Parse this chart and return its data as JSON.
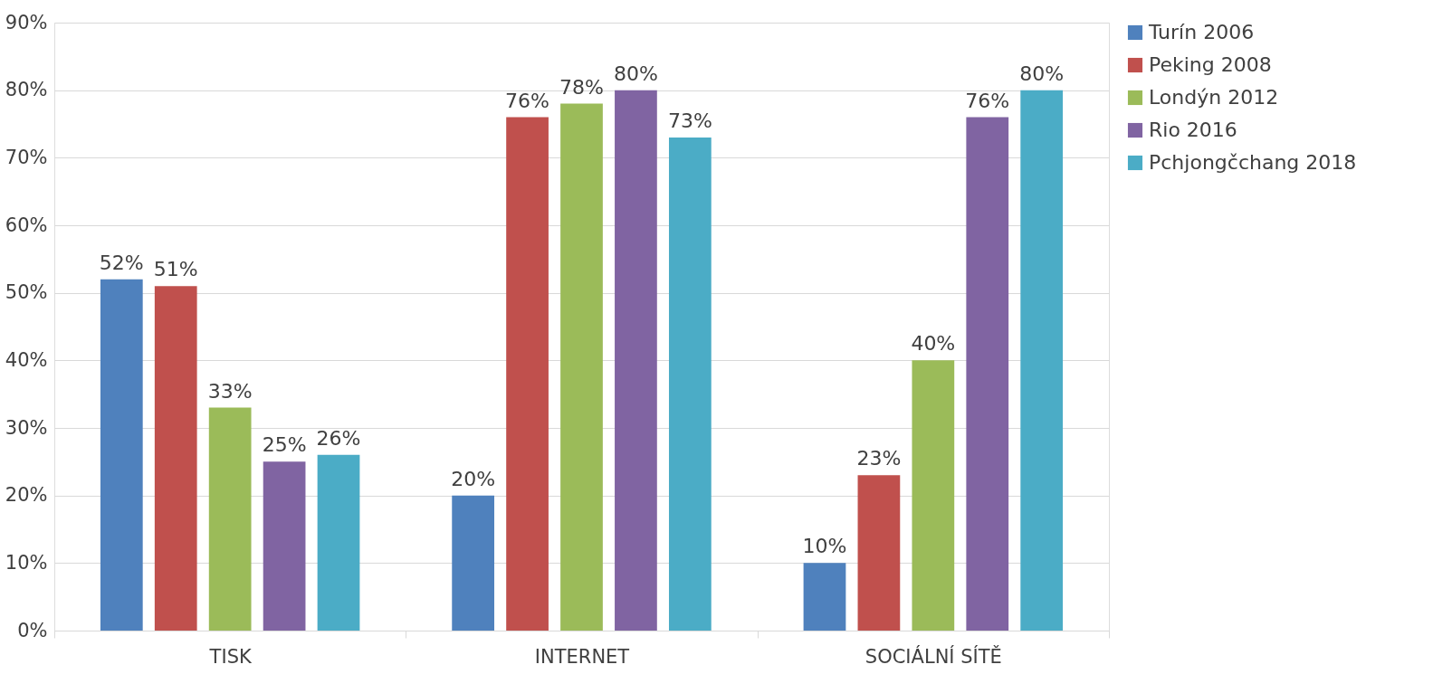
{
  "chart_data": {
    "type": "bar",
    "categories": [
      "TISK",
      "INTERNET",
      "SOCIÁLNÍ SÍTĚ"
    ],
    "series": [
      {
        "name": "Turín 2006",
        "color": "#4f81bd",
        "values": [
          52,
          20,
          10
        ],
        "value_labels": [
          "52%",
          "20%",
          "10%"
        ]
      },
      {
        "name": "Peking 2008",
        "color": "#c0504d",
        "values": [
          51,
          76,
          23
        ],
        "value_labels": [
          "51%",
          "76%",
          "23%"
        ]
      },
      {
        "name": "Londýn 2012",
        "color": "#9bbb59",
        "values": [
          33,
          78,
          40
        ],
        "value_labels": [
          "33%",
          "78%",
          "40%"
        ]
      },
      {
        "name": "Rio 2016",
        "color": "#8064a2",
        "values": [
          25,
          80,
          76
        ],
        "value_labels": [
          "25%",
          "80%",
          "76%"
        ]
      },
      {
        "name": "Pchjongčchang 2018",
        "color": "#4bacc6",
        "values": [
          26,
          73,
          80
        ],
        "value_labels": [
          "26%",
          "73%",
          "80%"
        ]
      }
    ],
    "ylim": [
      0,
      90
    ],
    "yticks": [
      {
        "value": 0,
        "label": "0%"
      },
      {
        "value": 10,
        "label": "10%"
      },
      {
        "value": 20,
        "label": "20%"
      },
      {
        "value": 30,
        "label": "30%"
      },
      {
        "value": 40,
        "label": "40%"
      },
      {
        "value": 50,
        "label": "50%"
      },
      {
        "value": 60,
        "label": "60%"
      },
      {
        "value": 70,
        "label": "70%"
      },
      {
        "value": 80,
        "label": "80%"
      },
      {
        "value": 90,
        "label": "90%"
      }
    ],
    "grid": "y",
    "legend": "right"
  }
}
